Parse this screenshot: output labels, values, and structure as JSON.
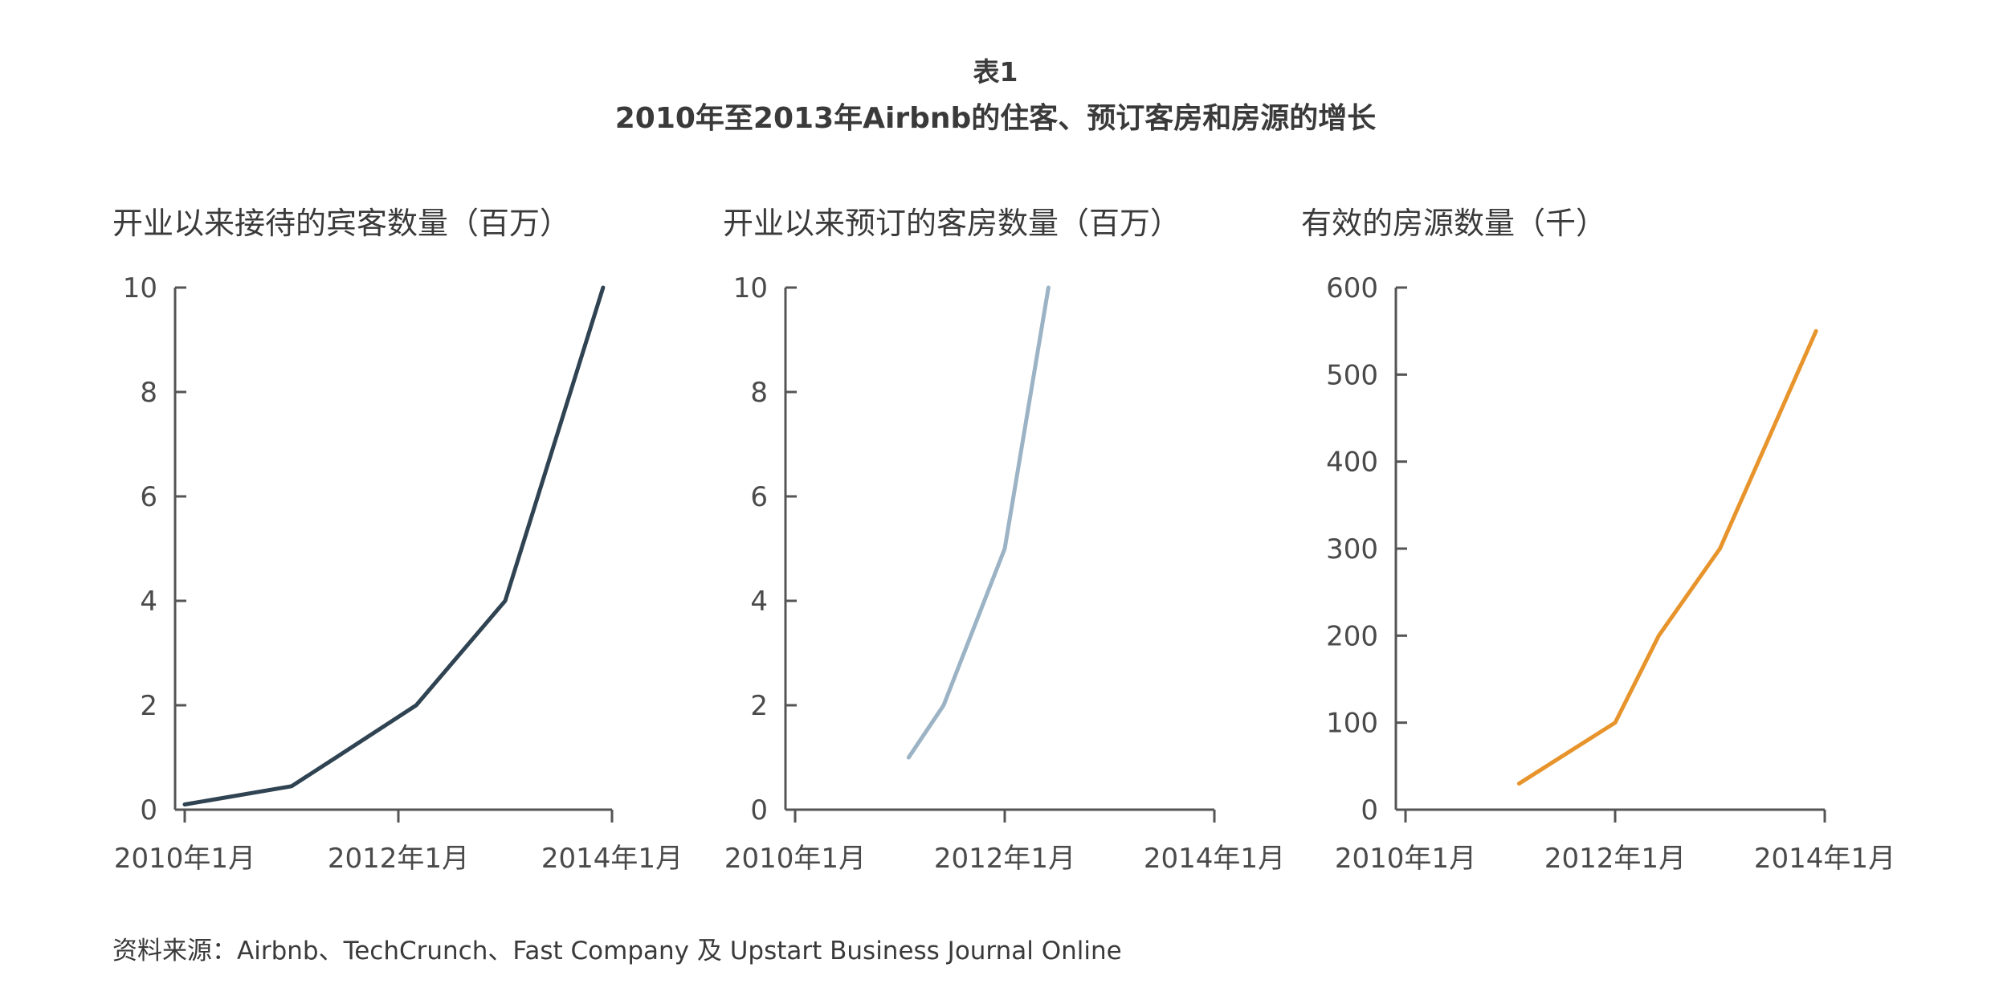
{
  "figure": {
    "label": "表1",
    "title": "2010年至2013年Airbnb的住客、预订客房和房源的增长"
  },
  "source_note": "资料来源：Airbnb、TechCrunch、Fast Company 及 Upstart Business Journal Online",
  "colors": {
    "guests": "#2f4352",
    "bookings": "#9bb3c4",
    "listings": "#e8942c",
    "axis": "#555555"
  },
  "chart_data": [
    {
      "type": "line",
      "title": "开业以来接待的宾客数量（百万）",
      "x_axis": {
        "min": "2010-01",
        "max": "2014-01",
        "tick_labels": [
          "2010年1月",
          "2012年1月",
          "2014年1月"
        ]
      },
      "y_axis": {
        "min": 0,
        "max": 10,
        "ticks": [
          0,
          2,
          4,
          6,
          8,
          10
        ]
      },
      "grid": false,
      "series": [
        {
          "color": "#2f4352",
          "x": [
            "2010-01",
            "2011-01",
            "2011-06",
            "2012-03",
            "2013-01",
            "2013-12"
          ],
          "y": [
            0.1,
            0.45,
            1,
            2,
            4,
            10
          ]
        }
      ]
    },
    {
      "type": "line",
      "title": "开业以来预订的客房数量（百万）",
      "x_axis": {
        "min": "2010-01",
        "max": "2014-01",
        "tick_labels": [
          "2010年1月",
          "2012年1月",
          "2014年1月"
        ]
      },
      "y_axis": {
        "min": 0,
        "max": 10,
        "ticks": [
          0,
          2,
          4,
          6,
          8,
          10
        ]
      },
      "grid": false,
      "series": [
        {
          "color": "#9bb3c4",
          "x": [
            "2011-02",
            "2011-06",
            "2012-01",
            "2012-06"
          ],
          "y": [
            1,
            2,
            5,
            10
          ]
        }
      ]
    },
    {
      "type": "line",
      "title": "有效的房源数量（千）",
      "x_axis": {
        "min": "2010-01",
        "max": "2014-01",
        "tick_labels": [
          "2010年1月",
          "2012年1月",
          "2014年1月"
        ]
      },
      "y_axis": {
        "min": 0,
        "max": 600,
        "ticks": [
          0,
          100,
          200,
          300,
          400,
          500,
          600
        ]
      },
      "grid": false,
      "series": [
        {
          "color": "#e8942c",
          "x": [
            "2011-02",
            "2012-01",
            "2012-06",
            "2013-01",
            "2013-12"
          ],
          "y": [
            30,
            100,
            200,
            300,
            550
          ]
        }
      ]
    }
  ]
}
